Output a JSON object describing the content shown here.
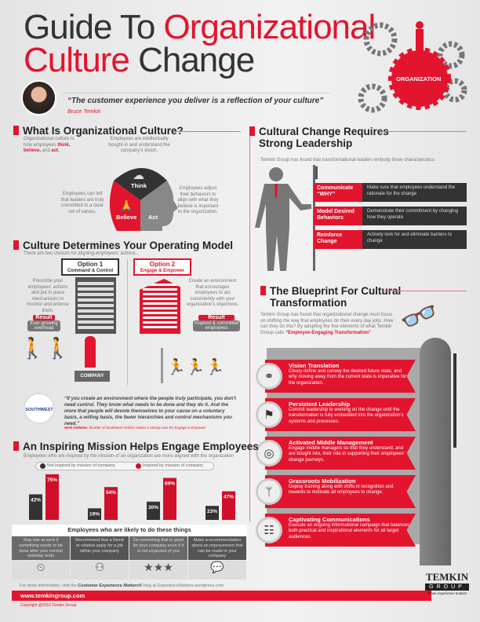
{
  "header": {
    "title_a": "Guide To ",
    "title_b": "Organizational",
    "title_c": "Culture",
    "title_d": " Change",
    "quote": "“The customer experience you deliver is a reflection of your culture”",
    "quote_by": "Bruce Temkin",
    "org_label": "ORGANIZATION"
  },
  "what": {
    "title": "What Is Organizational Culture?",
    "intro_a": "Organizational culture is how employees ",
    "think": "think,",
    "believe": "believe,",
    "and": " and ",
    "act": "act.",
    "think_desc": "Employees are intellectually bought-in and understand the company's vision.",
    "believe_desc": "Employees can tell that leaders are truly committed to a clear set of values.",
    "act_desc": "Employees adjust their behaviors to align with what they believe is important to the organization.",
    "labels": [
      "Think",
      "Believe",
      "Act"
    ]
  },
  "leadership": {
    "title_1": "Cultural Change Requires",
    "title_2": "Strong Leadership",
    "sub": "Temkin Group has found that transformational leaders embody three characteristics:",
    "rows": [
      {
        "k": "Communicate “WHY”",
        "v": "Make sure that employees understand the rationale for the change"
      },
      {
        "k": "Model Desired Behaviors",
        "v": "Demonstrate their commitment by changing how they operate"
      },
      {
        "k": "Reinforce Change",
        "v": "Actively look for and eliminate barriers to change"
      }
    ]
  },
  "operating": {
    "title": "Culture Determines Your Operating Model",
    "sub": "There are two choices for aligning employees' actions...",
    "opt1": "Option 1",
    "opt1_sub": "Command & Control",
    "opt2": "Option 2",
    "opt2_sub": "Engage & Empower",
    "opt1_desc": "Prescribe your employees' actions and put in place mechanisms to monitor and enforce them.",
    "opt2_desc": "Create an environment that encourages employees to act consistently with your organization's objectives.",
    "result": "Result",
    "result1": "Ever-growing overhead",
    "result2": "Inspired & committed employees",
    "company": "COMPANY",
    "logo": "SOUTHWEST",
    "quote": "“If you create an environment where the people truly participate, you don't need control. They know what needs to be done and they do it. And the more that people will devote themselves to your cause on a voluntary basis, a willing basis, the fewer hierarchies and control mechanisms you need.”",
    "quote_by": "Herb Kelleher,",
    "quote_by_rest": " founder of Southwest Airlines makes a strong case for Engage & Empower"
  },
  "blueprint": {
    "title_1": "The Blueprint For Cultural",
    "title_2": "Transformation",
    "sub": "Temkin Group has found that organizational change must focus on shifting the way that employees do their every day jobs. How can they do this? By adopting the five elements of what Temkin Group calls ",
    "sub_em": "“Employee-Engaging Transformation”",
    "items": [
      {
        "title": "Vision Translation",
        "desc": "Cleary define and convey the desired future state, and why moving away from the current state is imperative for the organization.",
        "icon": "binoculars-icon"
      },
      {
        "title": "Persistent Leadership",
        "desc": "Commit leadership to working on the change until the transformation is fully embedded into the organization's systems and processes.",
        "icon": "leader-flag-icon"
      },
      {
        "title": "Activated Middle Management",
        "desc": "Engage middle managers so that they understand, and are bought into, their role in supporting their employees' change journeys.",
        "icon": "manager-target-icon"
      },
      {
        "title": "Grassroots Mobilization",
        "desc": "Deploy training along with shifts in recognition and rewards to motivate all employees to change.",
        "icon": "roots-icon"
      },
      {
        "title": "Captivating Communications",
        "desc": "Execute an ongoing informational campaign that balances both practical and inspirational elements for all target audiences.",
        "icon": "meeting-icon"
      }
    ]
  },
  "mission": {
    "title": "An Inspiring Mission Helps Engage Employees",
    "sub": "Employees who are inspired by the mission of an organization are more aligned with the organization",
    "likely": "Employees who are likely to do these things"
  },
  "chart_data": {
    "type": "bar",
    "categories": [
      "Stay late at work if something needs to be done after your normal workday ends",
      "Recommend that a friend or relative apply for a job within your company",
      "Do something that is good for your company even if it is not expected of you",
      "Make a recommendation about an improvement that can be made in your company"
    ],
    "series": [
      {
        "name": "Not inspired by mission of company",
        "values": [
          42,
          19,
          30,
          23
        ],
        "labels": [
          "42%",
          "19%",
          "30%",
          "23%"
        ],
        "color": "#333333"
      },
      {
        "name": "Inspired by mission of company",
        "values": [
          75,
          54,
          69,
          47
        ],
        "labels": [
          "75%",
          "54%",
          "69%",
          "47%"
        ],
        "color": "#d0102a"
      }
    ],
    "ylim": [
      0,
      100
    ],
    "legend": "top"
  },
  "footer": {
    "more_a": "For more information, visit the ",
    "more_em": "Customer Experience Matters®",
    "more_b": " blog at ExperienceMatters.wordpress.com",
    "url": "www.temkingroup.com",
    "copyright": "Copyright @2016 Temkin Group",
    "logo_1": "TEMKIN",
    "logo_2": "GROUP",
    "tagline": "When experience matters"
  },
  "colors": {
    "accent": "#e3142d",
    "dark": "#333333"
  }
}
